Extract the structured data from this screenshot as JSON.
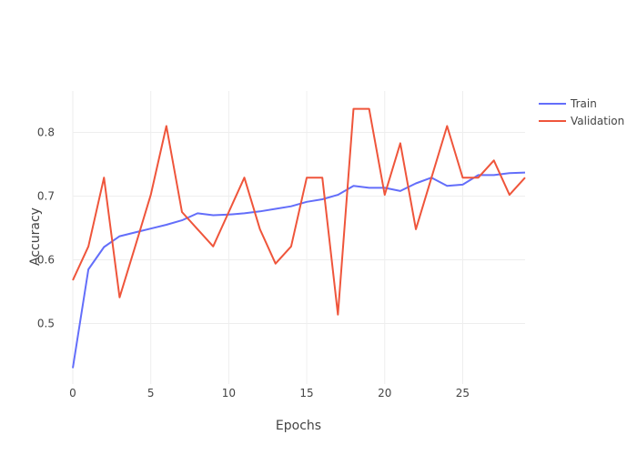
{
  "chart_data": {
    "type": "line",
    "title": "",
    "xlabel": "Epochs",
    "ylabel": "Accuracy",
    "xlim": [
      0,
      29
    ],
    "ylim": [
      0.405,
      0.865
    ],
    "x_ticks": [
      0,
      5,
      10,
      15,
      20,
      25
    ],
    "y_ticks": [
      0.5,
      0.6,
      0.7,
      0.8
    ],
    "grid": true,
    "legend_position": "top-right",
    "x": [
      0,
      1,
      2,
      3,
      4,
      5,
      6,
      7,
      8,
      9,
      10,
      11,
      12,
      13,
      14,
      15,
      16,
      17,
      18,
      19,
      20,
      21,
      22,
      23,
      24,
      25,
      26,
      27,
      28,
      29
    ],
    "series": [
      {
        "name": "Train",
        "color": "#636efa",
        "values": [
          0.43,
          0.585,
          0.62,
          0.637,
          0.643,
          0.649,
          0.655,
          0.662,
          0.673,
          0.67,
          0.671,
          0.673,
          0.676,
          0.68,
          0.684,
          0.691,
          0.695,
          0.702,
          0.716,
          0.713,
          0.713,
          0.708,
          0.72,
          0.729,
          0.716,
          0.718,
          0.733,
          0.733,
          0.736,
          0.737
        ]
      },
      {
        "name": "Validation",
        "color": "#ef553b",
        "values": [
          0.568,
          0.621,
          0.729,
          0.541,
          0.621,
          0.702,
          0.81,
          0.675,
          0.648,
          0.621,
          0.675,
          0.729,
          0.648,
          0.594,
          0.621,
          0.729,
          0.729,
          0.514,
          0.837,
          0.837,
          0.702,
          0.783,
          0.648,
          0.729,
          0.81,
          0.729,
          0.729,
          0.756,
          0.702,
          0.729
        ]
      }
    ]
  }
}
